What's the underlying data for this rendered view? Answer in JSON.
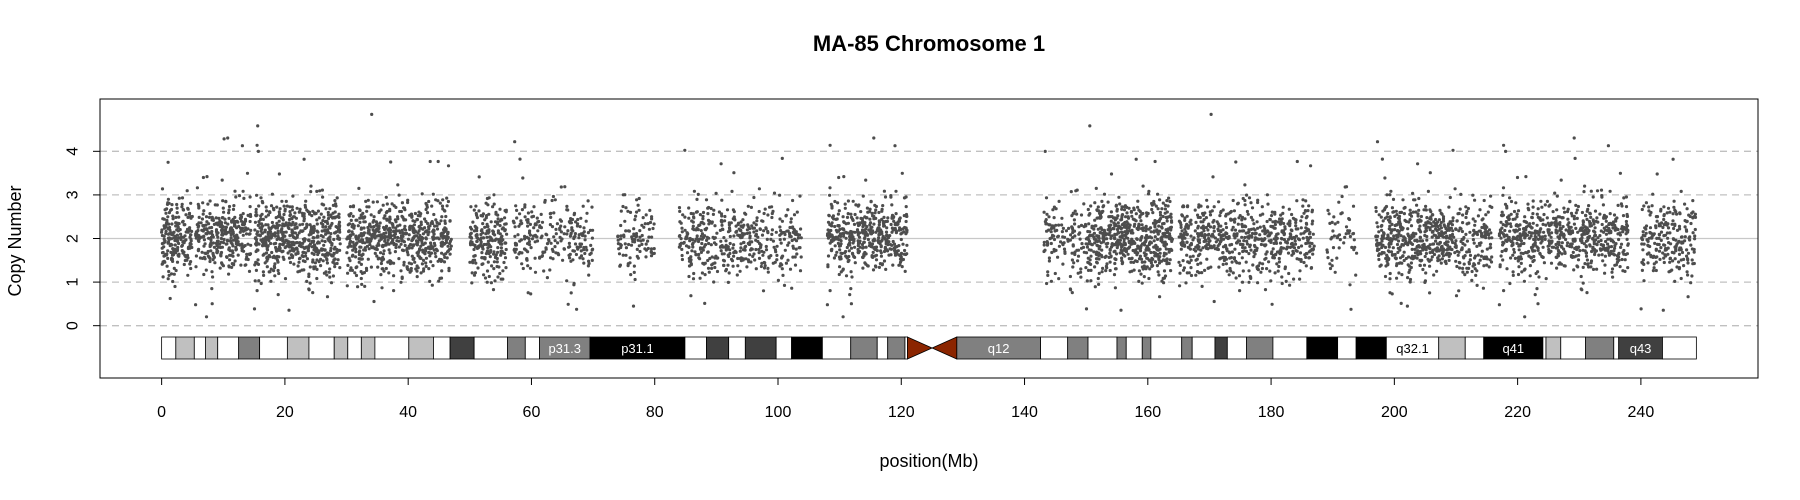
{
  "chart_data": {
    "type": "scatter",
    "title": "MA-85  Chromosome 1",
    "xlabel": "position(Mb)",
    "ylabel": "Copy Number",
    "xlim": [
      -10,
      259
    ],
    "ylim": [
      -1.2,
      5.2
    ],
    "x_ticks": [
      0,
      20,
      40,
      60,
      80,
      100,
      120,
      140,
      160,
      180,
      200,
      220,
      240
    ],
    "y_ticks": [
      0,
      1,
      2,
      3,
      4
    ],
    "grid": {
      "dashed_y": [
        0,
        1,
        3,
        4
      ],
      "solid_y": [
        2
      ]
    },
    "point_color": "#4d4d4d",
    "baseline_copy_number": 2,
    "segments": [
      {
        "x_start": 0,
        "x_end": 5,
        "density": 1.0
      },
      {
        "x_start": 5.5,
        "x_end": 14.5,
        "density": 0.9
      },
      {
        "x_start": 15,
        "x_end": 29,
        "density": 1.0
      },
      {
        "x_start": 30,
        "x_end": 47,
        "density": 0.9
      },
      {
        "x_start": 50,
        "x_end": 56,
        "density": 0.85
      },
      {
        "x_start": 57,
        "x_end": 70,
        "density": 0.45
      },
      {
        "x_start": 74,
        "x_end": 80,
        "density": 0.4
      },
      {
        "x_start": 84,
        "x_end": 96,
        "density": 0.6
      },
      {
        "x_start": 96,
        "x_end": 104,
        "density": 0.45
      },
      {
        "x_start": 108,
        "x_end": 121,
        "density": 0.85
      },
      {
        "x_start": 143,
        "x_end": 150,
        "density": 0.45
      },
      {
        "x_start": 150,
        "x_end": 164,
        "density": 1.0
      },
      {
        "x_start": 165,
        "x_end": 187,
        "density": 0.7
      },
      {
        "x_start": 189,
        "x_end": 194,
        "density": 0.25
      },
      {
        "x_start": 197,
        "x_end": 209,
        "density": 0.9
      },
      {
        "x_start": 209,
        "x_end": 216,
        "density": 0.6
      },
      {
        "x_start": 217,
        "x_end": 238,
        "density": 0.75
      },
      {
        "x_start": 240,
        "x_end": 249,
        "density": 0.6
      }
    ],
    "ideogram": {
      "centromere": {
        "start": 121,
        "end": 129,
        "color": "#8b2500"
      },
      "bands": [
        {
          "start": 0,
          "end": 2.3,
          "color": "#ffffff"
        },
        {
          "start": 2.3,
          "end": 5.3,
          "color": "#c0c0c0"
        },
        {
          "start": 5.3,
          "end": 7.1,
          "color": "#ffffff"
        },
        {
          "start": 7.1,
          "end": 9.1,
          "color": "#c0c0c0"
        },
        {
          "start": 9.1,
          "end": 12.5,
          "color": "#ffffff"
        },
        {
          "start": 12.5,
          "end": 15.9,
          "color": "#808080"
        },
        {
          "start": 15.9,
          "end": 20.4,
          "color": "#ffffff"
        },
        {
          "start": 20.4,
          "end": 23.9,
          "color": "#c0c0c0"
        },
        {
          "start": 23.9,
          "end": 28.0,
          "color": "#ffffff"
        },
        {
          "start": 28.0,
          "end": 30.2,
          "color": "#c0c0c0"
        },
        {
          "start": 30.2,
          "end": 32.4,
          "color": "#ffffff"
        },
        {
          "start": 32.4,
          "end": 34.6,
          "color": "#c0c0c0"
        },
        {
          "start": 34.6,
          "end": 40.1,
          "color": "#ffffff"
        },
        {
          "start": 40.1,
          "end": 44.1,
          "color": "#c0c0c0"
        },
        {
          "start": 44.1,
          "end": 46.8,
          "color": "#ffffff"
        },
        {
          "start": 46.8,
          "end": 50.7,
          "color": "#404040"
        },
        {
          "start": 50.7,
          "end": 56.1,
          "color": "#ffffff"
        },
        {
          "start": 56.1,
          "end": 59.0,
          "color": "#808080"
        },
        {
          "start": 59.0,
          "end": 61.3,
          "color": "#ffffff"
        },
        {
          "start": 61.3,
          "end": 69.5,
          "color": "#808080",
          "label": "p31.3",
          "text_color": "#ffffff"
        },
        {
          "start": 69.5,
          "end": 84.9,
          "color": "#000000",
          "label": "p31.1",
          "text_color": "#ffffff"
        },
        {
          "start": 84.9,
          "end": 88.4,
          "color": "#ffffff"
        },
        {
          "start": 88.4,
          "end": 92.0,
          "color": "#404040"
        },
        {
          "start": 92.0,
          "end": 94.7,
          "color": "#ffffff"
        },
        {
          "start": 94.7,
          "end": 99.7,
          "color": "#404040"
        },
        {
          "start": 99.7,
          "end": 102.2,
          "color": "#ffffff"
        },
        {
          "start": 102.2,
          "end": 107.2,
          "color": "#000000"
        },
        {
          "start": 107.2,
          "end": 111.8,
          "color": "#ffffff"
        },
        {
          "start": 111.8,
          "end": 116.1,
          "color": "#808080"
        },
        {
          "start": 116.1,
          "end": 117.8,
          "color": "#ffffff"
        },
        {
          "start": 117.8,
          "end": 120.6,
          "color": "#808080"
        },
        {
          "start": 120.6,
          "end": 121.0,
          "color": "#ffffff"
        },
        {
          "start": 129.0,
          "end": 142.6,
          "color": "#808080",
          "label": "q12",
          "text_color": "#ffffff"
        },
        {
          "start": 142.6,
          "end": 147.0,
          "color": "#ffffff"
        },
        {
          "start": 147.0,
          "end": 150.3,
          "color": "#808080"
        },
        {
          "start": 150.3,
          "end": 155.0,
          "color": "#ffffff"
        },
        {
          "start": 155.0,
          "end": 156.5,
          "color": "#808080"
        },
        {
          "start": 156.5,
          "end": 159.1,
          "color": "#ffffff"
        },
        {
          "start": 159.1,
          "end": 160.5,
          "color": "#808080"
        },
        {
          "start": 160.5,
          "end": 165.5,
          "color": "#ffffff"
        },
        {
          "start": 165.5,
          "end": 167.2,
          "color": "#808080"
        },
        {
          "start": 167.2,
          "end": 170.9,
          "color": "#ffffff"
        },
        {
          "start": 170.9,
          "end": 172.9,
          "color": "#404040"
        },
        {
          "start": 172.9,
          "end": 176.0,
          "color": "#ffffff"
        },
        {
          "start": 176.0,
          "end": 180.3,
          "color": "#808080"
        },
        {
          "start": 180.3,
          "end": 185.8,
          "color": "#ffffff"
        },
        {
          "start": 185.8,
          "end": 190.8,
          "color": "#000000"
        },
        {
          "start": 190.8,
          "end": 193.8,
          "color": "#ffffff"
        },
        {
          "start": 193.8,
          "end": 198.7,
          "color": "#000000"
        },
        {
          "start": 198.7,
          "end": 207.2,
          "color": "#ffffff",
          "label": "q32.1",
          "text_color": "#000000"
        },
        {
          "start": 207.2,
          "end": 211.5,
          "color": "#c0c0c0"
        },
        {
          "start": 211.5,
          "end": 214.5,
          "color": "#ffffff"
        },
        {
          "start": 214.5,
          "end": 224.1,
          "color": "#000000",
          "label": "q41",
          "text_color": "#ffffff"
        },
        {
          "start": 224.1,
          "end": 224.6,
          "color": "#ffffff"
        },
        {
          "start": 224.6,
          "end": 227.0,
          "color": "#c0c0c0"
        },
        {
          "start": 227.0,
          "end": 231.0,
          "color": "#ffffff"
        },
        {
          "start": 231.0,
          "end": 235.6,
          "color": "#808080"
        },
        {
          "start": 235.6,
          "end": 236.4,
          "color": "#ffffff"
        },
        {
          "start": 236.4,
          "end": 243.5,
          "color": "#404040",
          "label": "q43",
          "text_color": "#ffffff"
        },
        {
          "start": 243.5,
          "end": 249.0,
          "color": "#ffffff"
        }
      ]
    }
  }
}
